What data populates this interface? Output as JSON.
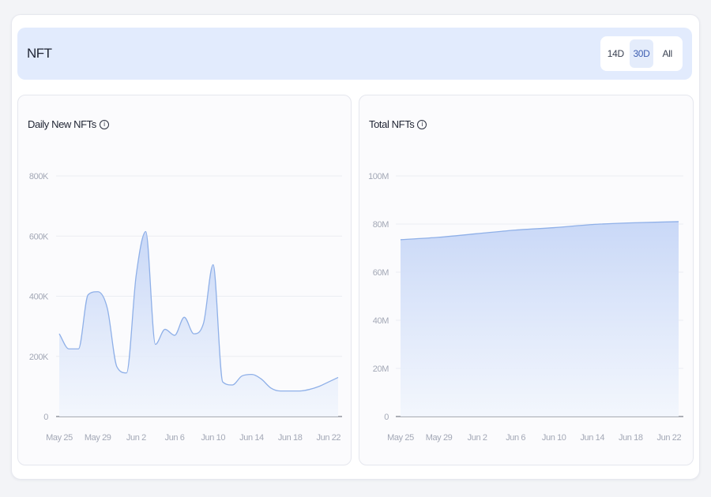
{
  "header": {
    "title": "NFT"
  },
  "range_tabs": [
    {
      "label": "14D",
      "active": false
    },
    {
      "label": "30D",
      "active": true
    },
    {
      "label": "All",
      "active": false
    }
  ],
  "colors": {
    "line": "#8fb0e8",
    "fill_top": "#c9d8f7",
    "fill_bottom": "#f2f6fd",
    "grid": "#ebedf2",
    "axis": "#5d6270"
  },
  "icons": {
    "info": "info-icon"
  },
  "chart_data": [
    {
      "type": "area",
      "title": "Daily New NFTs",
      "info_glyph": "i",
      "xlabel": "",
      "ylabel": "",
      "ylim": [
        0,
        800000
      ],
      "yticks": [
        0,
        200000,
        400000,
        600000,
        800000
      ],
      "ytick_labels": [
        "0",
        "200K",
        "400K",
        "600K",
        "800K"
      ],
      "xlim": [
        "2023-05-25",
        "2023-06-23"
      ],
      "xticks": [
        "2023-05-25",
        "2023-05-29",
        "2023-06-02",
        "2023-06-06",
        "2023-06-10",
        "2023-06-14",
        "2023-06-18",
        "2023-06-22"
      ],
      "xtick_labels": [
        "May 25",
        "May 29",
        "Jun 2",
        "Jun 6",
        "Jun 10",
        "Jun 14",
        "Jun 18",
        "Jun 22"
      ],
      "grid": true,
      "x": [
        "2023-05-25",
        "2023-05-26",
        "2023-05-27",
        "2023-05-28",
        "2023-05-29",
        "2023-05-30",
        "2023-05-31",
        "2023-06-01",
        "2023-06-02",
        "2023-06-03",
        "2023-06-04",
        "2023-06-05",
        "2023-06-06",
        "2023-06-07",
        "2023-06-08",
        "2023-06-09",
        "2023-06-10",
        "2023-06-11",
        "2023-06-12",
        "2023-06-13",
        "2023-06-14",
        "2023-06-15",
        "2023-06-16",
        "2023-06-17",
        "2023-06-18",
        "2023-06-19",
        "2023-06-20",
        "2023-06-21",
        "2023-06-22",
        "2023-06-23"
      ],
      "values": [
        275000,
        225000,
        225000,
        405000,
        415000,
        360000,
        165000,
        145000,
        470000,
        615000,
        240000,
        290000,
        270000,
        330000,
        275000,
        310000,
        505000,
        115000,
        105000,
        135000,
        140000,
        125000,
        95000,
        85000,
        85000,
        85000,
        90000,
        100000,
        115000,
        130000
      ]
    },
    {
      "type": "area",
      "title": "Total NFTs",
      "info_glyph": "i",
      "xlabel": "",
      "ylabel": "",
      "ylim": [
        0,
        100000000
      ],
      "yticks": [
        0,
        20000000,
        40000000,
        60000000,
        80000000,
        100000000
      ],
      "ytick_labels": [
        "0",
        "20M",
        "40M",
        "60M",
        "80M",
        "100M"
      ],
      "xlim": [
        "2023-05-25",
        "2023-06-23"
      ],
      "xticks": [
        "2023-05-25",
        "2023-05-29",
        "2023-06-02",
        "2023-06-06",
        "2023-06-10",
        "2023-06-14",
        "2023-06-18",
        "2023-06-22"
      ],
      "xtick_labels": [
        "May 25",
        "May 29",
        "Jun 2",
        "Jun 6",
        "Jun 10",
        "Jun 14",
        "Jun 18",
        "Jun 22"
      ],
      "grid": true,
      "x": [
        "2023-05-25",
        "2023-05-29",
        "2023-06-02",
        "2023-06-06",
        "2023-06-10",
        "2023-06-14",
        "2023-06-18",
        "2023-06-23"
      ],
      "values": [
        73500000,
        74500000,
        76000000,
        77500000,
        78500000,
        79800000,
        80500000,
        81000000
      ]
    }
  ]
}
